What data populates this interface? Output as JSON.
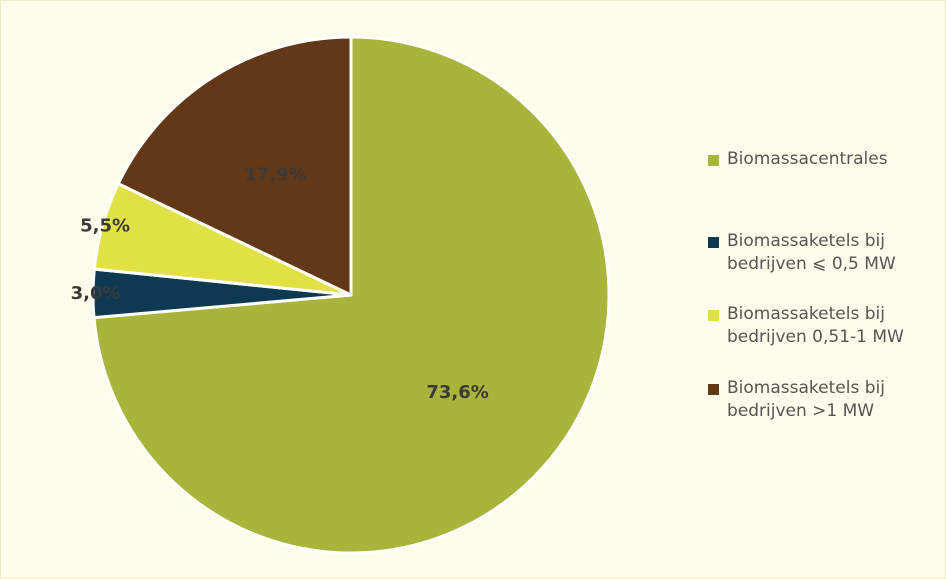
{
  "chart_data": {
    "type": "pie",
    "start_angle_deg": 0,
    "direction": "clockwise",
    "slices": [
      {
        "label": "Biomassacentrales",
        "value": 73.6,
        "value_label": "73,6%",
        "color": "#a9b43a"
      },
      {
        "label": "Biomassaketels bij\nbedrijven ⩽ 0,5 MW",
        "value": 3.0,
        "value_label": "3,0%",
        "color": "#0d3a52"
      },
      {
        "label": "Biomassaketels bij\nbedrijven 0,51-1 MW",
        "value": 5.5,
        "value_label": "5,5%",
        "color": "#e1e145"
      },
      {
        "label": "Biomassaketels bij\nbedrijven >1 MW",
        "value": 17.9,
        "value_label": "17,9%",
        "color": "#633816"
      }
    ],
    "legend_position": "right"
  }
}
